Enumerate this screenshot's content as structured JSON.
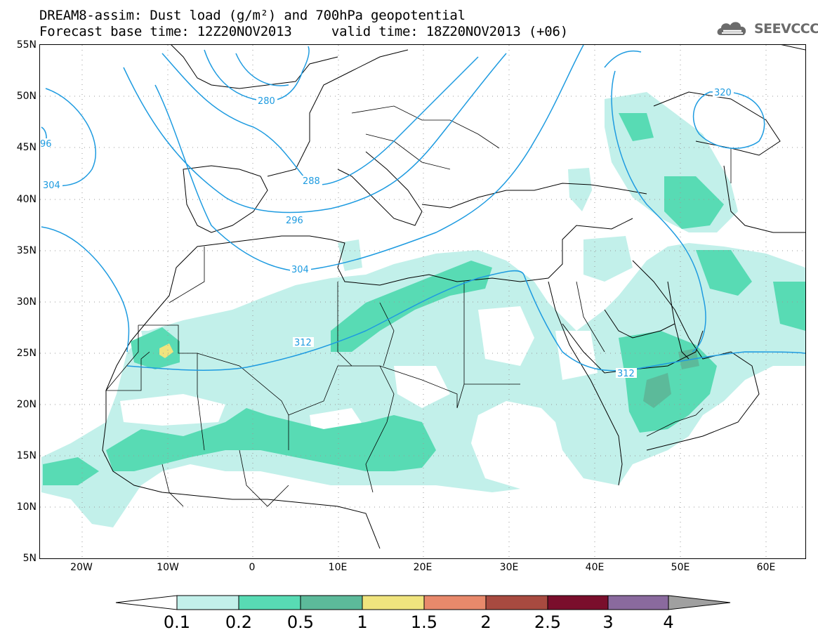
{
  "header": {
    "title_line1": "DREAM8-assim: Dust load (g/m²) and 700hPa geopotential",
    "title_line2": "Forecast base time: 12Z20NOV2013     valid time: 18Z20NOV2013 (+06)",
    "logo_text": "SEEVCCC"
  },
  "map": {
    "lat_labels": [
      "55N",
      "50N",
      "45N",
      "40N",
      "35N",
      "30N",
      "25N",
      "20N",
      "15N",
      "10N",
      "5N"
    ],
    "lon_labels": [
      "20W",
      "10W",
      "0",
      "10E",
      "20E",
      "30E",
      "40E",
      "50E",
      "60E"
    ],
    "contour_labels": [
      "280",
      "288",
      "296",
      "304",
      "312",
      "320",
      "304",
      "96",
      "312"
    ],
    "colors": {
      "contour": "#1e9be0",
      "dust_0_1": "#c2f0ea",
      "dust_0_2": "#58dbb4",
      "dust_0_5": "#5cba9a",
      "dust_1": "#f0e47e",
      "dust_1_5": "#e8896b",
      "dust_2": "#a84a40",
      "dust_2_5": "#7a0e2c",
      "dust_3": "#8a6a9e",
      "dust_4": "#a0a0a0"
    }
  },
  "colorbar": {
    "labels": [
      "0.1",
      "0.2",
      "0.5",
      "1",
      "1.5",
      "2",
      "2.5",
      "3",
      "4"
    ]
  }
}
